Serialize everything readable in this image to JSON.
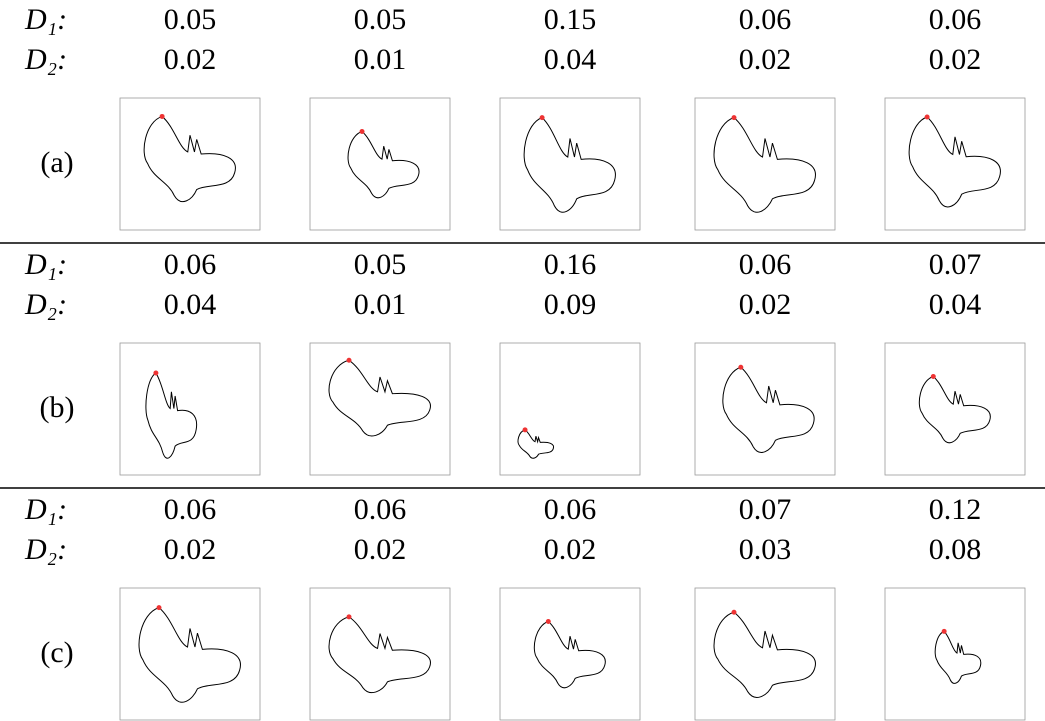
{
  "row_labels": {
    "D1": "D₁:",
    "D2": "D₂:"
  },
  "groups": [
    {
      "label": "(a)",
      "D1": [
        0.05,
        0.05,
        0.15,
        0.06,
        0.06
      ],
      "D2": [
        0.02,
        0.01,
        0.04,
        0.02,
        0.02
      ]
    },
    {
      "label": "(b)",
      "D1": [
        0.06,
        0.05,
        0.16,
        0.06,
        0.07
      ],
      "D2": [
        0.04,
        0.01,
        0.09,
        0.02,
        0.04
      ]
    },
    {
      "label": "(c)",
      "D1": [
        0.06,
        0.06,
        0.06,
        0.07,
        0.12
      ],
      "D2": [
        0.02,
        0.02,
        0.02,
        0.03,
        0.08
      ]
    }
  ]
}
